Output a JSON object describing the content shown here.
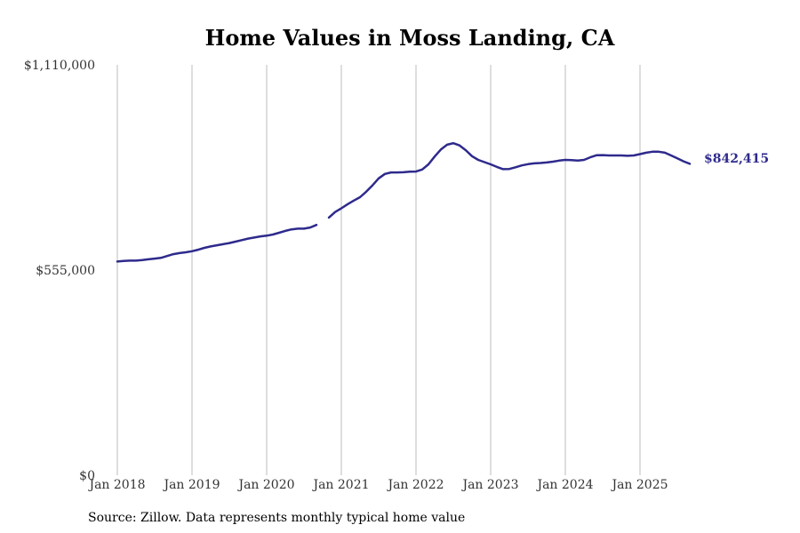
{
  "chart_data": {
    "type": "line",
    "title": "Home Values in Moss Landing, CA",
    "xlabel": "",
    "ylabel": "",
    "ylim": [
      0,
      1110000
    ],
    "y_ticks": [
      {
        "value": 0,
        "label": "$0"
      },
      {
        "value": 555000,
        "label": "$555,000"
      },
      {
        "value": 1110000,
        "label": "$1,110,000"
      }
    ],
    "x_ticks": [
      {
        "value": "2018-01",
        "label": "Jan 2018"
      },
      {
        "value": "2019-01",
        "label": "Jan 2019"
      },
      {
        "value": "2020-01",
        "label": "Jan 2020"
      },
      {
        "value": "2021-01",
        "label": "Jan 2021"
      },
      {
        "value": "2022-01",
        "label": "Jan 2022"
      },
      {
        "value": "2023-01",
        "label": "Jan 2023"
      },
      {
        "value": "2024-01",
        "label": "Jan 2024"
      },
      {
        "value": "2025-01",
        "label": "Jan 2025"
      }
    ],
    "xlim": [
      "2017-11",
      "2025-11"
    ],
    "grid": {
      "vertical": true,
      "horizontal": false
    },
    "end_label": "$842,415",
    "color": "#2e2a8c",
    "series": [
      {
        "name": "",
        "points": [
          [
            "2018-01",
            578000
          ],
          [
            "2018-02",
            579500
          ],
          [
            "2018-03",
            580500
          ],
          [
            "2018-04",
            580500
          ],
          [
            "2018-05",
            582000
          ],
          [
            "2018-06",
            584000
          ],
          [
            "2018-07",
            586000
          ],
          [
            "2018-08",
            588000
          ],
          [
            "2018-09",
            593000
          ],
          [
            "2018-10",
            598000
          ],
          [
            "2018-11",
            601000
          ],
          [
            "2018-12",
            603000
          ],
          [
            "2019-01",
            606000
          ],
          [
            "2019-02",
            610000
          ],
          [
            "2019-03",
            615000
          ],
          [
            "2019-04",
            619000
          ],
          [
            "2019-05",
            622000
          ],
          [
            "2019-06",
            625000
          ],
          [
            "2019-07",
            628000
          ],
          [
            "2019-08",
            632000
          ],
          [
            "2019-09",
            636000
          ],
          [
            "2019-10",
            640000
          ],
          [
            "2019-11",
            643000
          ],
          [
            "2019-12",
            646000
          ],
          [
            "2020-01",
            648000
          ],
          [
            "2020-02",
            651000
          ],
          [
            "2020-03",
            656000
          ],
          [
            "2020-04",
            661000
          ],
          [
            "2020-05",
            665000
          ],
          [
            "2020-06",
            667000
          ],
          [
            "2020-07",
            667000
          ],
          [
            "2020-08",
            670000
          ],
          [
            "2020-09",
            677000
          ],
          [
            "2020-10",
            null
          ],
          [
            "2020-11",
            697000
          ],
          [
            "2020-12",
            712000
          ],
          [
            "2021-01",
            722000
          ],
          [
            "2021-02",
            733000
          ],
          [
            "2021-03",
            743000
          ],
          [
            "2021-04",
            752000
          ],
          [
            "2021-05",
            767000
          ],
          [
            "2021-06",
            784000
          ],
          [
            "2021-07",
            803000
          ],
          [
            "2021-08",
            815000
          ],
          [
            "2021-09",
            819000
          ],
          [
            "2021-10",
            819000
          ],
          [
            "2021-11",
            819500
          ],
          [
            "2021-12",
            821000
          ],
          [
            "2022-01",
            821500
          ],
          [
            "2022-02",
            827000
          ],
          [
            "2022-03",
            841000
          ],
          [
            "2022-04",
            862000
          ],
          [
            "2022-05",
            881000
          ],
          [
            "2022-06",
            894000
          ],
          [
            "2022-07",
            898000
          ],
          [
            "2022-08",
            892000
          ],
          [
            "2022-09",
            879000
          ],
          [
            "2022-10",
            863000
          ],
          [
            "2022-11",
            853000
          ],
          [
            "2022-12",
            847000
          ],
          [
            "2023-01",
            841000
          ],
          [
            "2023-02",
            834000
          ],
          [
            "2023-03",
            828000
          ],
          [
            "2023-04",
            828500
          ],
          [
            "2023-05",
            833000
          ],
          [
            "2023-06",
            838000
          ],
          [
            "2023-07",
            841500
          ],
          [
            "2023-08",
            843500
          ],
          [
            "2023-09",
            844500
          ],
          [
            "2023-10",
            846000
          ],
          [
            "2023-11",
            848000
          ],
          [
            "2023-12",
            851000
          ],
          [
            "2024-01",
            853000
          ],
          [
            "2024-02",
            852500
          ],
          [
            "2024-03",
            851000
          ],
          [
            "2024-04",
            853000
          ],
          [
            "2024-05",
            860000
          ],
          [
            "2024-06",
            865500
          ],
          [
            "2024-07",
            866000
          ],
          [
            "2024-08",
            865000
          ],
          [
            "2024-09",
            865000
          ],
          [
            "2024-10",
            865000
          ],
          [
            "2024-11",
            864000
          ],
          [
            "2024-12",
            865000
          ],
          [
            "2025-01",
            868500
          ],
          [
            "2025-02",
            872500
          ],
          [
            "2025-03",
            875000
          ],
          [
            "2025-04",
            875000
          ],
          [
            "2025-05",
            872500
          ],
          [
            "2025-06",
            865000
          ],
          [
            "2025-07",
            857000
          ],
          [
            "2025-08",
            849000
          ],
          [
            "2025-09",
            842415
          ]
        ]
      }
    ]
  },
  "source_note": "Source: Zillow. Data represents monthly typical home value"
}
